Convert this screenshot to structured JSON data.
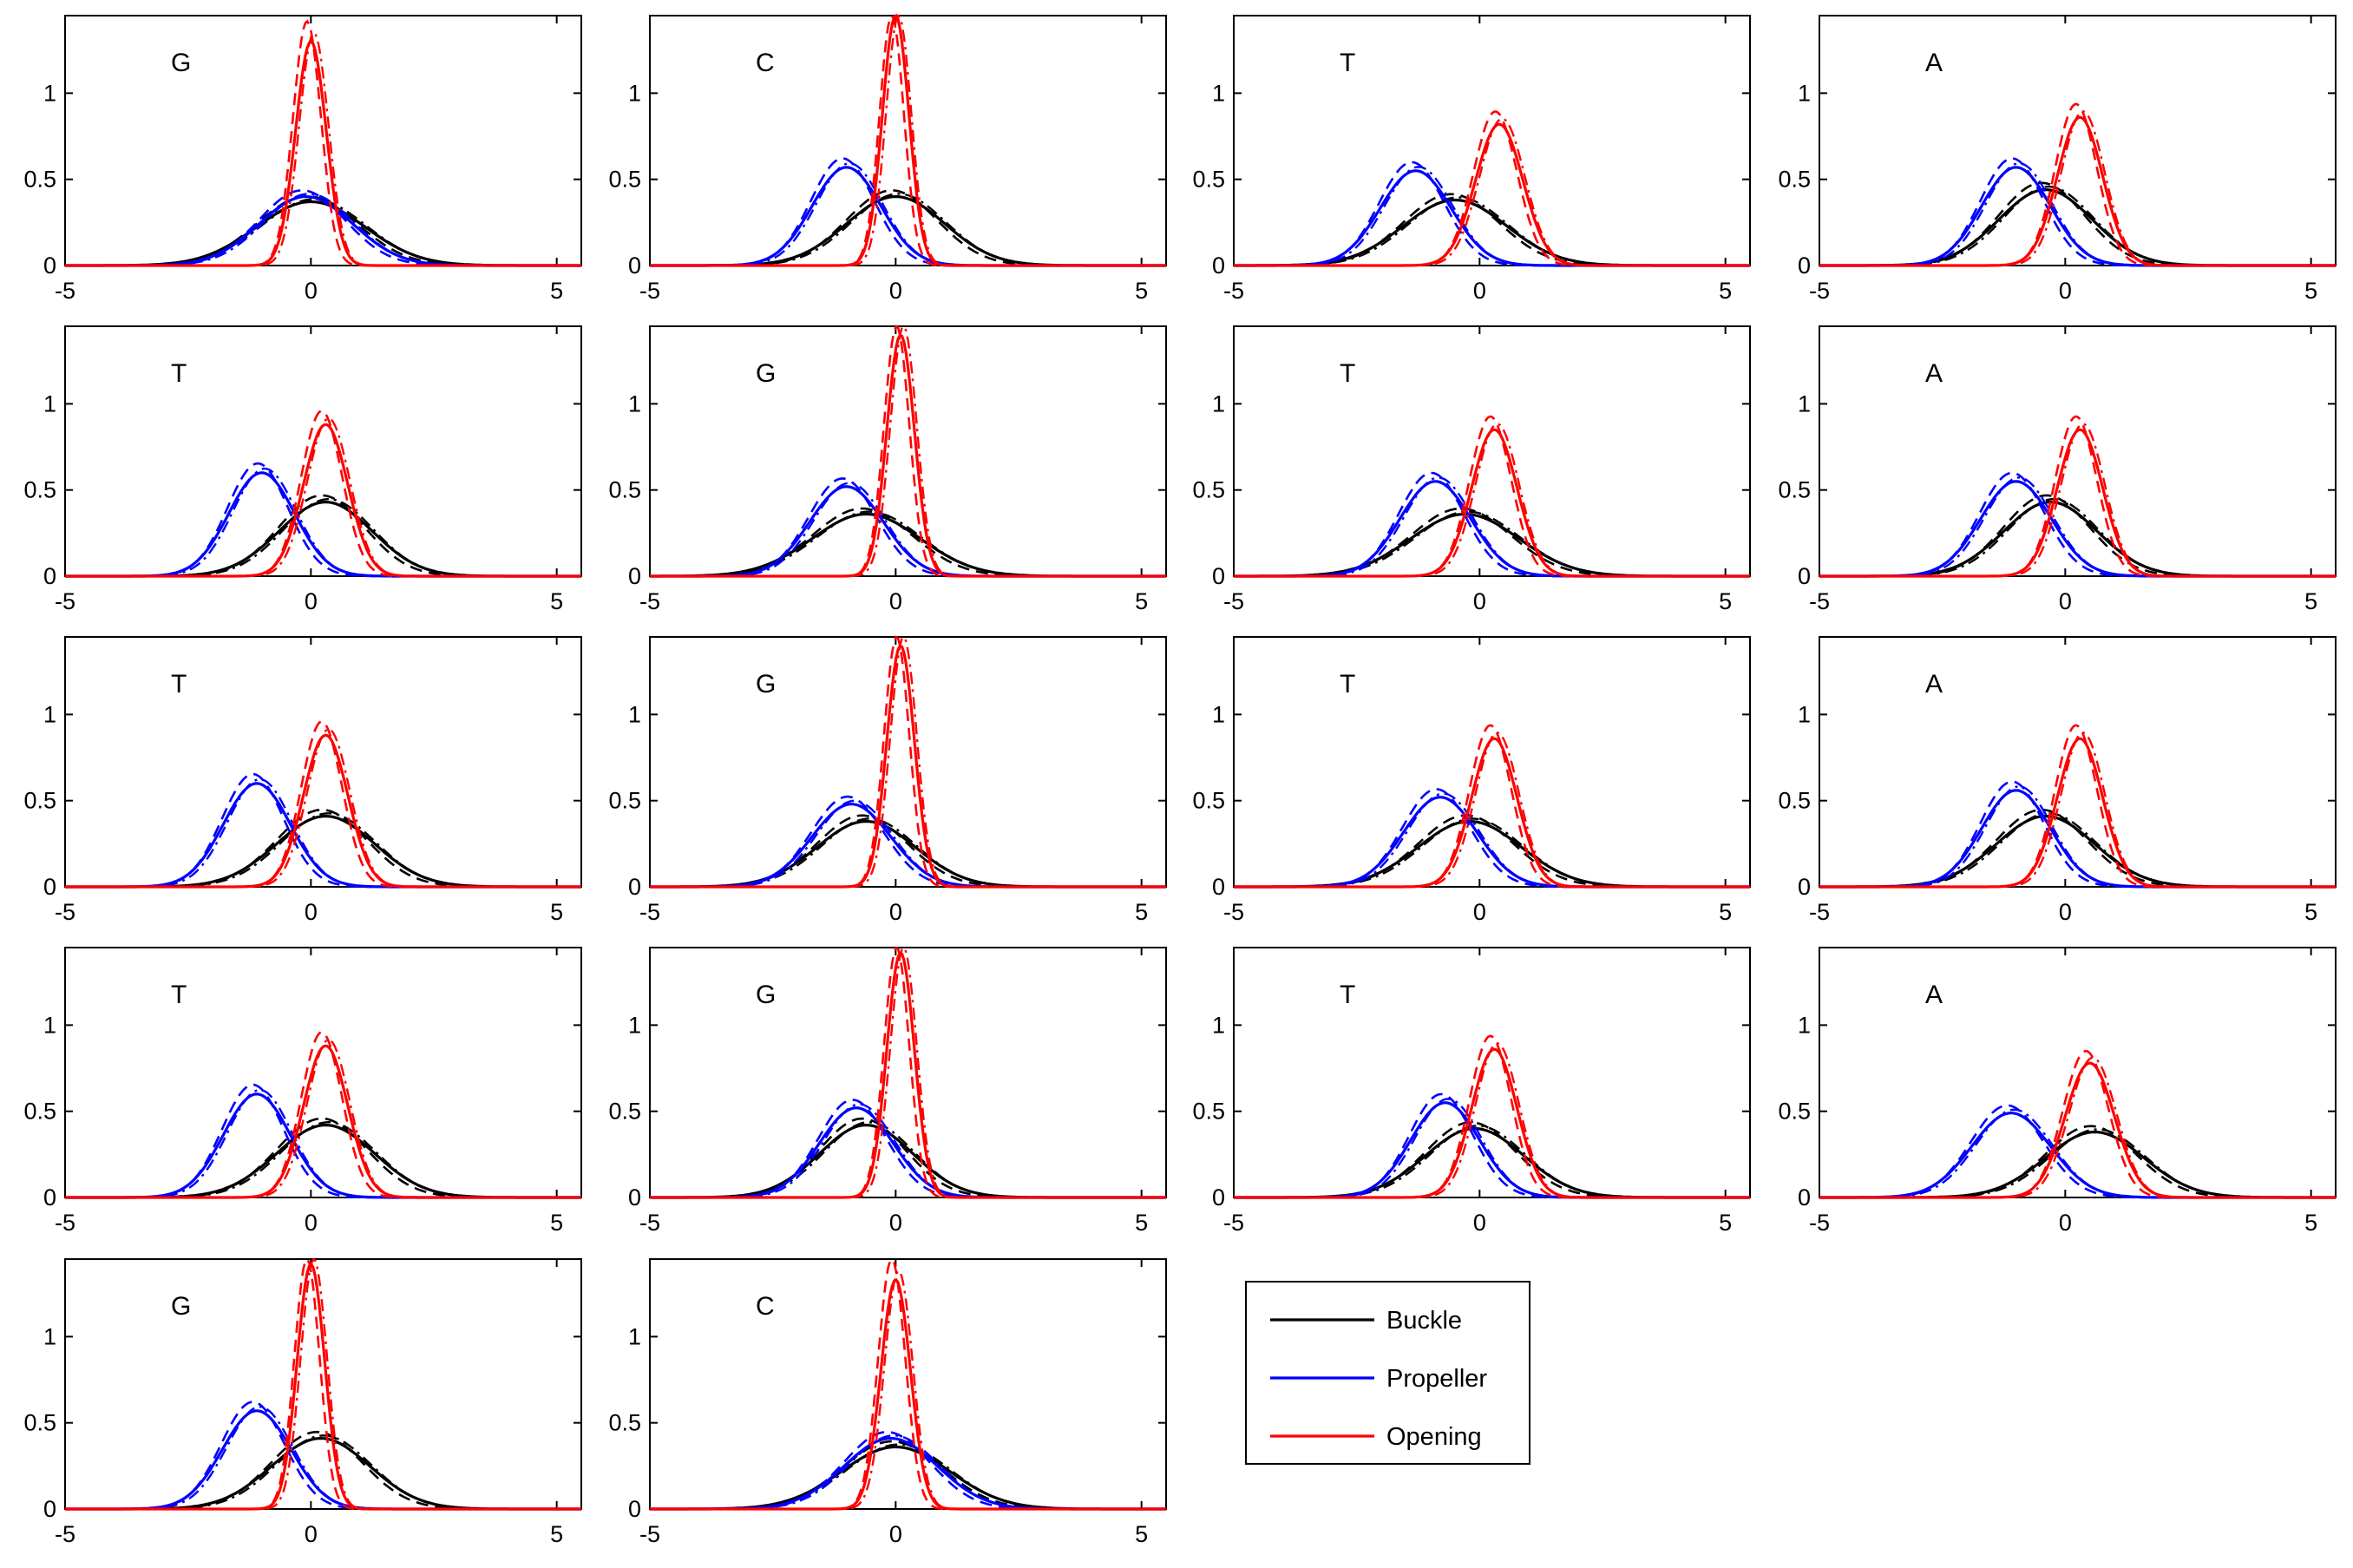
{
  "chart_data": [
    {
      "type": "line",
      "title": "G",
      "xlim": [
        -5,
        5.5
      ],
      "ylim": [
        0,
        1.45
      ],
      "xticks": [
        -5,
        0,
        5
      ],
      "yticks": [
        0,
        0.5,
        1
      ],
      "series": [
        {
          "name": "Buckle",
          "mu": 0.0,
          "sd": 1.1,
          "peak": 0.37
        },
        {
          "name": "Propeller",
          "mu": -0.1,
          "sd": 0.95,
          "peak": 0.4
        },
        {
          "name": "Opening",
          "mu": 0.0,
          "sd": 0.31,
          "peak": 1.3
        }
      ]
    },
    {
      "type": "line",
      "title": "C",
      "xlim": [
        -5,
        5.5
      ],
      "ylim": [
        0,
        1.45
      ],
      "xticks": [
        -5,
        0,
        5
      ],
      "yticks": [
        0,
        0.5,
        1
      ],
      "series": [
        {
          "name": "Buckle",
          "mu": 0.0,
          "sd": 1.0,
          "peak": 0.4
        },
        {
          "name": "Propeller",
          "mu": -1.0,
          "sd": 0.7,
          "peak": 0.57
        },
        {
          "name": "Opening",
          "mu": 0.0,
          "sd": 0.27,
          "peak": 1.45
        }
      ]
    },
    {
      "type": "line",
      "title": "T",
      "xlim": [
        -5,
        5.5
      ],
      "ylim": [
        0,
        1.45
      ],
      "xticks": [
        -5,
        0,
        5
      ],
      "yticks": [
        0,
        0.5,
        1
      ],
      "series": [
        {
          "name": "Buckle",
          "mu": -0.5,
          "sd": 1.05,
          "peak": 0.38
        },
        {
          "name": "Propeller",
          "mu": -1.3,
          "sd": 0.72,
          "peak": 0.55
        },
        {
          "name": "Opening",
          "mu": 0.4,
          "sd": 0.48,
          "peak": 0.82
        }
      ]
    },
    {
      "type": "line",
      "title": "A",
      "xlim": [
        -5,
        5.5
      ],
      "ylim": [
        0,
        1.45
      ],
      "xticks": [
        -5,
        0,
        5
      ],
      "yticks": [
        0,
        0.5,
        1
      ],
      "series": [
        {
          "name": "Buckle",
          "mu": -0.4,
          "sd": 0.95,
          "peak": 0.44
        },
        {
          "name": "Propeller",
          "mu": -1.0,
          "sd": 0.7,
          "peak": 0.57
        },
        {
          "name": "Opening",
          "mu": 0.3,
          "sd": 0.46,
          "peak": 0.86
        }
      ]
    },
    {
      "type": "line",
      "title": "T",
      "xlim": [
        -5,
        5.5
      ],
      "ylim": [
        0,
        1.45
      ],
      "xticks": [
        -5,
        0,
        5
      ],
      "yticks": [
        0,
        0.5,
        1
      ],
      "series": [
        {
          "name": "Buckle",
          "mu": 0.3,
          "sd": 0.95,
          "peak": 0.43
        },
        {
          "name": "Propeller",
          "mu": -1.0,
          "sd": 0.67,
          "peak": 0.6
        },
        {
          "name": "Opening",
          "mu": 0.3,
          "sd": 0.45,
          "peak": 0.88
        }
      ]
    },
    {
      "type": "line",
      "title": "G",
      "xlim": [
        -5,
        5.5
      ],
      "ylim": [
        0,
        1.45
      ],
      "xticks": [
        -5,
        0,
        5
      ],
      "yticks": [
        0,
        0.5,
        1
      ],
      "series": [
        {
          "name": "Buckle",
          "mu": -0.6,
          "sd": 1.1,
          "peak": 0.36
        },
        {
          "name": "Propeller",
          "mu": -1.0,
          "sd": 0.75,
          "peak": 0.52
        },
        {
          "name": "Opening",
          "mu": 0.1,
          "sd": 0.28,
          "peak": 1.4
        }
      ]
    },
    {
      "type": "line",
      "title": "T",
      "xlim": [
        -5,
        5.5
      ],
      "ylim": [
        0,
        1.45
      ],
      "xticks": [
        -5,
        0,
        5
      ],
      "yticks": [
        0,
        0.5,
        1
      ],
      "series": [
        {
          "name": "Buckle",
          "mu": -0.3,
          "sd": 1.1,
          "peak": 0.36
        },
        {
          "name": "Propeller",
          "mu": -0.9,
          "sd": 0.72,
          "peak": 0.55
        },
        {
          "name": "Opening",
          "mu": 0.3,
          "sd": 0.46,
          "peak": 0.85
        }
      ]
    },
    {
      "type": "line",
      "title": "A",
      "xlim": [
        -5,
        5.5
      ],
      "ylim": [
        0,
        1.45
      ],
      "xticks": [
        -5,
        0,
        5
      ],
      "yticks": [
        0,
        0.5,
        1
      ],
      "series": [
        {
          "name": "Buckle",
          "mu": -0.3,
          "sd": 0.95,
          "peak": 0.43
        },
        {
          "name": "Propeller",
          "mu": -1.0,
          "sd": 0.72,
          "peak": 0.55
        },
        {
          "name": "Opening",
          "mu": 0.3,
          "sd": 0.46,
          "peak": 0.85
        }
      ]
    },
    {
      "type": "line",
      "title": "T",
      "xlim": [
        -5,
        5.5
      ],
      "ylim": [
        0,
        1.45
      ],
      "xticks": [
        -5,
        0,
        5
      ],
      "yticks": [
        0,
        0.5,
        1
      ],
      "series": [
        {
          "name": "Buckle",
          "mu": 0.3,
          "sd": 1.0,
          "peak": 0.41
        },
        {
          "name": "Propeller",
          "mu": -1.1,
          "sd": 0.68,
          "peak": 0.6
        },
        {
          "name": "Opening",
          "mu": 0.3,
          "sd": 0.45,
          "peak": 0.88
        }
      ]
    },
    {
      "type": "line",
      "title": "G",
      "xlim": [
        -5,
        5.5
      ],
      "ylim": [
        0,
        1.45
      ],
      "xticks": [
        -5,
        0,
        5
      ],
      "yticks": [
        0,
        0.5,
        1
      ],
      "series": [
        {
          "name": "Buckle",
          "mu": -0.6,
          "sd": 1.0,
          "peak": 0.38
        },
        {
          "name": "Propeller",
          "mu": -0.9,
          "sd": 0.8,
          "peak": 0.48
        },
        {
          "name": "Opening",
          "mu": 0.1,
          "sd": 0.28,
          "peak": 1.4
        }
      ]
    },
    {
      "type": "line",
      "title": "T",
      "xlim": [
        -5,
        5.5
      ],
      "ylim": [
        0,
        1.45
      ],
      "xticks": [
        -5,
        0,
        5
      ],
      "yticks": [
        0,
        0.5,
        1
      ],
      "series": [
        {
          "name": "Buckle",
          "mu": -0.2,
          "sd": 1.05,
          "peak": 0.38
        },
        {
          "name": "Propeller",
          "mu": -0.8,
          "sd": 0.75,
          "peak": 0.52
        },
        {
          "name": "Opening",
          "mu": 0.3,
          "sd": 0.46,
          "peak": 0.86
        }
      ]
    },
    {
      "type": "line",
      "title": "A",
      "xlim": [
        -5,
        5.5
      ],
      "ylim": [
        0,
        1.45
      ],
      "xticks": [
        -5,
        0,
        5
      ],
      "yticks": [
        0,
        0.5,
        1
      ],
      "series": [
        {
          "name": "Buckle",
          "mu": -0.4,
          "sd": 1.0,
          "peak": 0.41
        },
        {
          "name": "Propeller",
          "mu": -1.0,
          "sd": 0.7,
          "peak": 0.56
        },
        {
          "name": "Opening",
          "mu": 0.3,
          "sd": 0.46,
          "peak": 0.86
        }
      ]
    },
    {
      "type": "line",
      "title": "T",
      "xlim": [
        -5,
        5.5
      ],
      "ylim": [
        0,
        1.45
      ],
      "xticks": [
        -5,
        0,
        5
      ],
      "yticks": [
        0,
        0.5,
        1
      ],
      "series": [
        {
          "name": "Buckle",
          "mu": 0.3,
          "sd": 1.0,
          "peak": 0.42
        },
        {
          "name": "Propeller",
          "mu": -1.1,
          "sd": 0.68,
          "peak": 0.6
        },
        {
          "name": "Opening",
          "mu": 0.3,
          "sd": 0.45,
          "peak": 0.88
        }
      ]
    },
    {
      "type": "line",
      "title": "G",
      "xlim": [
        -5,
        5.5
      ],
      "ylim": [
        0,
        1.45
      ],
      "xticks": [
        -5,
        0,
        5
      ],
      "yticks": [
        0,
        0.5,
        1
      ],
      "series": [
        {
          "name": "Buckle",
          "mu": -0.6,
          "sd": 0.95,
          "peak": 0.42
        },
        {
          "name": "Propeller",
          "mu": -0.8,
          "sd": 0.75,
          "peak": 0.52
        },
        {
          "name": "Opening",
          "mu": 0.1,
          "sd": 0.28,
          "peak": 1.42
        }
      ]
    },
    {
      "type": "line",
      "title": "T",
      "xlim": [
        -5,
        5.5
      ],
      "ylim": [
        0,
        1.45
      ],
      "xticks": [
        -5,
        0,
        5
      ],
      "yticks": [
        0,
        0.5,
        1
      ],
      "series": [
        {
          "name": "Buckle",
          "mu": -0.1,
          "sd": 1.0,
          "peak": 0.4
        },
        {
          "name": "Propeller",
          "mu": -0.7,
          "sd": 0.7,
          "peak": 0.55
        },
        {
          "name": "Opening",
          "mu": 0.3,
          "sd": 0.46,
          "peak": 0.86
        }
      ]
    },
    {
      "type": "line",
      "title": "A",
      "xlim": [
        -5,
        5.5
      ],
      "ylim": [
        0,
        1.45
      ],
      "xticks": [
        -5,
        0,
        5
      ],
      "yticks": [
        0,
        0.5,
        1
      ],
      "series": [
        {
          "name": "Buckle",
          "mu": 0.6,
          "sd": 1.0,
          "peak": 0.38
        },
        {
          "name": "Propeller",
          "mu": -1.1,
          "sd": 0.8,
          "peak": 0.49
        },
        {
          "name": "Opening",
          "mu": 0.5,
          "sd": 0.5,
          "peak": 0.78
        }
      ]
    },
    {
      "type": "line",
      "title": "G",
      "xlim": [
        -5,
        5.5
      ],
      "ylim": [
        0,
        1.45
      ],
      "xticks": [
        -5,
        0,
        5
      ],
      "yticks": [
        0,
        0.5,
        1
      ],
      "series": [
        {
          "name": "Buckle",
          "mu": 0.2,
          "sd": 1.0,
          "peak": 0.41
        },
        {
          "name": "Propeller",
          "mu": -1.1,
          "sd": 0.7,
          "peak": 0.57
        },
        {
          "name": "Opening",
          "mu": 0.0,
          "sd": 0.28,
          "peak": 1.42
        }
      ]
    },
    {
      "type": "line",
      "title": "C",
      "xlim": [
        -5,
        5.5
      ],
      "ylim": [
        0,
        1.45
      ],
      "xticks": [
        -5,
        0,
        5
      ],
      "yticks": [
        0,
        0.5,
        1
      ],
      "series": [
        {
          "name": "Buckle",
          "mu": 0.0,
          "sd": 1.1,
          "peak": 0.36
        },
        {
          "name": "Propeller",
          "mu": -0.1,
          "sd": 0.95,
          "peak": 0.41
        },
        {
          "name": "Opening",
          "mu": 0.0,
          "sd": 0.3,
          "peak": 1.33
        }
      ]
    }
  ],
  "legend": {
    "placement": "bottom-right",
    "items": [
      {
        "name": "Buckle",
        "color": "#000000"
      },
      {
        "name": "Propeller",
        "color": "#0000ff"
      },
      {
        "name": "Opening",
        "color": "#ff0000"
      }
    ]
  },
  "colors": {
    "Buckle": "#000000",
    "Propeller": "#0000ff",
    "Opening": "#ff0000"
  }
}
